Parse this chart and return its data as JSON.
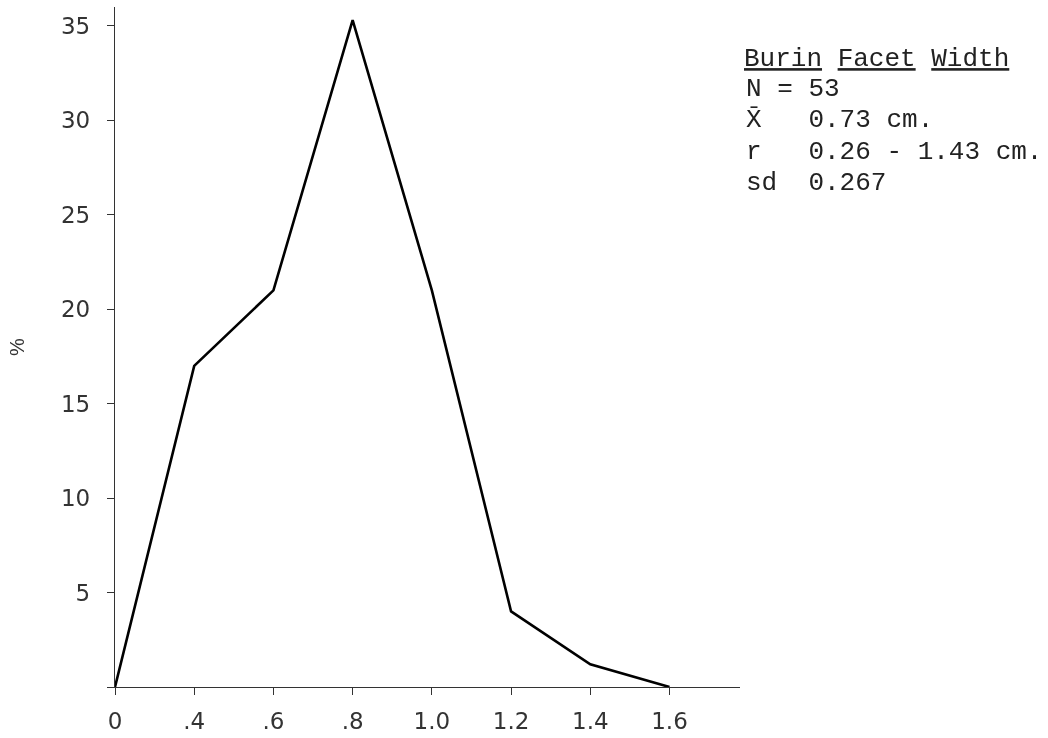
{
  "chart_data": {
    "type": "line",
    "title": "Burin Facet Width",
    "ylabel": "%",
    "categories": [
      "0",
      ".4",
      ".6",
      ".8",
      "1.0",
      "1.2",
      "1.4",
      "1.6"
    ],
    "values": [
      0,
      17,
      21,
      35.3,
      21,
      4,
      1.2,
      0
    ],
    "color": "#000000",
    "ylim": [
      0,
      36
    ],
    "yticks": [
      {
        "value": 0,
        "label": null
      },
      5,
      10,
      15,
      20,
      25,
      30,
      35
    ],
    "annotations": [
      "N = 53",
      "X̄   0.73 cm.",
      "r   0.26 - 1.43 cm.",
      "sd  0.267"
    ],
    "grid": false
  }
}
